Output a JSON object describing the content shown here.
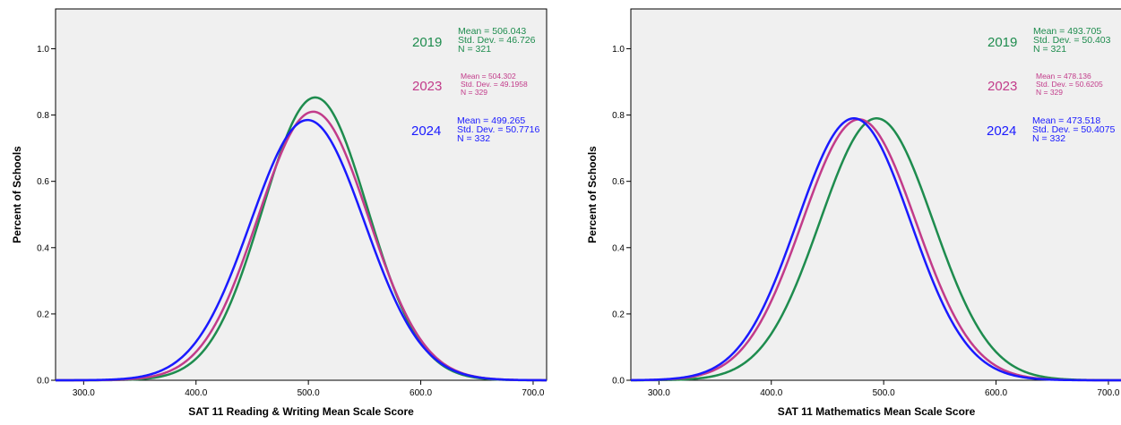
{
  "chart_data": [
    {
      "type": "line",
      "title": "",
      "xlabel": "SAT 11 Reading & Writing Mean Scale Score",
      "ylabel": "Percent of Schools",
      "xlim": [
        275,
        712
      ],
      "ylim": [
        0,
        1.12
      ],
      "xticks": [
        "300.0",
        "400.0",
        "500.0",
        "600.0",
        "700.0"
      ],
      "yticks": [
        "0.0",
        "0.2",
        "0.4",
        "0.6",
        "0.8",
        "1.0"
      ],
      "grid": false,
      "background": "#f0f0f0",
      "series": [
        {
          "name": "2019",
          "color": "#1e8c4e",
          "mean": 506.043,
          "sd": 46.726,
          "peak": 0.853,
          "stats": [
            "Mean = 506.043",
            "Std. Dev. = 46.726",
            "N = 321"
          ]
        },
        {
          "name": "2023",
          "color": "#c23b8a",
          "mean": 504.302,
          "sd": 49.1958,
          "peak": 0.81,
          "stats": [
            "Mean = 504.302",
            "Std. Dev. = 49.1958",
            "N = 329"
          ]
        },
        {
          "name": "2024",
          "color": "#1a1aff",
          "mean": 499.265,
          "sd": 50.7716,
          "peak": 0.785,
          "stats": [
            "Mean = 499.265",
            "Std. Dev. = 50.7716",
            "N = 332"
          ]
        }
      ]
    },
    {
      "type": "line",
      "title": "",
      "xlabel": "SAT 11 Mathematics Mean Scale Score",
      "ylabel": "Percent of Schools",
      "xlim": [
        275,
        712
      ],
      "ylim": [
        0,
        1.12
      ],
      "xticks": [
        "300.0",
        "400.0",
        "500.0",
        "600.0",
        "700.0"
      ],
      "yticks": [
        "0.0",
        "0.2",
        "0.4",
        "0.6",
        "0.8",
        "1.0"
      ],
      "grid": false,
      "background": "#f0f0f0",
      "series": [
        {
          "name": "2019",
          "color": "#1e8c4e",
          "mean": 493.705,
          "sd": 50.403,
          "peak": 0.79,
          "stats": [
            "Mean = 493.705",
            "Std. Dev. = 50.403",
            "N = 321"
          ]
        },
        {
          "name": "2023",
          "color": "#c23b8a",
          "mean": 478.136,
          "sd": 50.6205,
          "peak": 0.787,
          "stats": [
            "Mean = 478.136",
            "Std. Dev. = 50.6205",
            "N = 329"
          ]
        },
        {
          "name": "2024",
          "color": "#1a1aff",
          "mean": 473.518,
          "sd": 50.4075,
          "peak": 0.79,
          "stats": [
            "Mean = 473.518",
            "Std. Dev. = 50.4075",
            "N = 332"
          ]
        }
      ]
    }
  ]
}
